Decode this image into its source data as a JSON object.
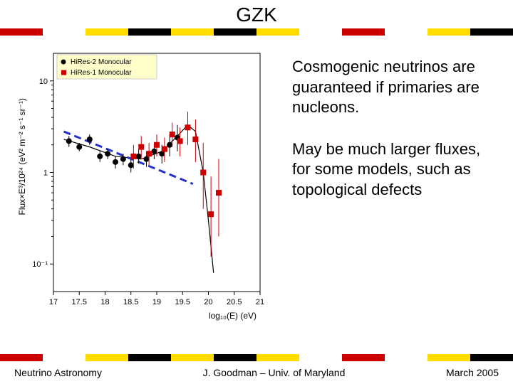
{
  "title": "GZK",
  "flag_colors": [
    "#cc0000",
    "#ffffff",
    "#ffdd00",
    "#000000",
    "#ffdd00",
    "#000000",
    "#ffdd00",
    "#ffffff",
    "#cc0000",
    "#ffffff",
    "#ffdd00",
    "#000000"
  ],
  "text1": "Cosmogenic neutrinos are guaranteed if primaries are nucleons.",
  "text2": "May be much larger fluxes, for some models, such as topological defects",
  "footer_left": "Neutrino Astronomy",
  "footer_center": "J. Goodman – Univ. of Maryland",
  "footer_right": "March 2005",
  "chart": {
    "xlabel": "log₁₀(E) (eV)",
    "ylabel": "Flux×E³/10²⁴ (eV² m⁻² s⁻¹ sr⁻¹)",
    "xlim": [
      17,
      21
    ],
    "ylim": [
      0.05,
      20
    ],
    "xticks": [
      17,
      17.5,
      18,
      18.5,
      19,
      19.5,
      20,
      20.5,
      21
    ],
    "yticks": [
      0.1,
      1,
      10
    ],
    "ytick_labels": [
      "10⁻¹",
      "1",
      "10"
    ],
    "legend": [
      {
        "label": "HiRes-2 Monocular",
        "color": "#000000"
      },
      {
        "label": "HiRes-1 Monocular",
        "color": "#cc0000"
      }
    ],
    "black_points": [
      {
        "x": 17.3,
        "y": 2.2,
        "ylo": 1.9,
        "yhi": 2.5
      },
      {
        "x": 17.5,
        "y": 1.9,
        "ylo": 1.7,
        "yhi": 2.1
      },
      {
        "x": 17.7,
        "y": 2.3,
        "ylo": 2.0,
        "yhi": 2.6
      },
      {
        "x": 17.9,
        "y": 1.5,
        "ylo": 1.3,
        "yhi": 1.7
      },
      {
        "x": 18.05,
        "y": 1.6,
        "ylo": 1.4,
        "yhi": 1.8
      },
      {
        "x": 18.2,
        "y": 1.3,
        "ylo": 1.1,
        "yhi": 1.5
      },
      {
        "x": 18.35,
        "y": 1.4,
        "ylo": 1.2,
        "yhi": 1.6
      },
      {
        "x": 18.5,
        "y": 1.2,
        "ylo": 1.0,
        "yhi": 1.4
      },
      {
        "x": 18.65,
        "y": 1.5,
        "ylo": 1.25,
        "yhi": 1.8
      },
      {
        "x": 18.8,
        "y": 1.4,
        "ylo": 1.15,
        "yhi": 1.7
      },
      {
        "x": 18.95,
        "y": 1.7,
        "ylo": 1.4,
        "yhi": 2.05
      },
      {
        "x": 19.1,
        "y": 1.6,
        "ylo": 1.25,
        "yhi": 2.0
      },
      {
        "x": 19.25,
        "y": 2.0,
        "ylo": 1.5,
        "yhi": 2.6
      },
      {
        "x": 19.4,
        "y": 2.4,
        "ylo": 1.7,
        "yhi": 3.3
      }
    ],
    "red_points": [
      {
        "x": 18.55,
        "y": 1.5,
        "ylo": 1.1,
        "yhi": 2.0
      },
      {
        "x": 18.7,
        "y": 1.9,
        "ylo": 1.4,
        "yhi": 2.5
      },
      {
        "x": 18.85,
        "y": 1.6,
        "ylo": 1.2,
        "yhi": 2.1
      },
      {
        "x": 19.0,
        "y": 2.0,
        "ylo": 1.5,
        "yhi": 2.6
      },
      {
        "x": 19.15,
        "y": 1.8,
        "ylo": 1.3,
        "yhi": 2.4
      },
      {
        "x": 19.3,
        "y": 2.6,
        "ylo": 1.9,
        "yhi": 3.5
      },
      {
        "x": 19.45,
        "y": 2.2,
        "ylo": 1.5,
        "yhi": 3.1
      },
      {
        "x": 19.6,
        "y": 3.1,
        "ylo": 2.0,
        "yhi": 4.6
      },
      {
        "x": 19.75,
        "y": 2.3,
        "ylo": 1.3,
        "yhi": 3.8
      },
      {
        "x": 19.9,
        "y": 1.0,
        "ylo": 0.4,
        "yhi": 2.1
      },
      {
        "x": 20.05,
        "y": 0.35,
        "ylo": 0.12,
        "yhi": 0.9
      },
      {
        "x": 20.2,
        "y": 0.6,
        "ylo": 0.2,
        "yhi": 1.4
      }
    ],
    "fit_curve": [
      {
        "x": 17.2,
        "y": 2.3
      },
      {
        "x": 17.7,
        "y": 1.9
      },
      {
        "x": 18.2,
        "y": 1.5
      },
      {
        "x": 18.7,
        "y": 1.4
      },
      {
        "x": 19.1,
        "y": 1.7
      },
      {
        "x": 19.4,
        "y": 2.5
      },
      {
        "x": 19.6,
        "y": 3.3
      },
      {
        "x": 19.75,
        "y": 2.8
      },
      {
        "x": 19.9,
        "y": 1.0
      },
      {
        "x": 20.0,
        "y": 0.3
      },
      {
        "x": 20.1,
        "y": 0.08
      }
    ],
    "dashed_line": [
      {
        "x": 17.2,
        "y": 2.8
      },
      {
        "x": 19.7,
        "y": 0.75
      }
    ],
    "colors": {
      "black": "#000000",
      "red": "#cc0000",
      "dashed": "#2233cc",
      "bg": "#ffffff",
      "legend_bg": "#ffffcc"
    },
    "marker_size": 4,
    "line_width": 1.2,
    "dashed_width": 3
  }
}
